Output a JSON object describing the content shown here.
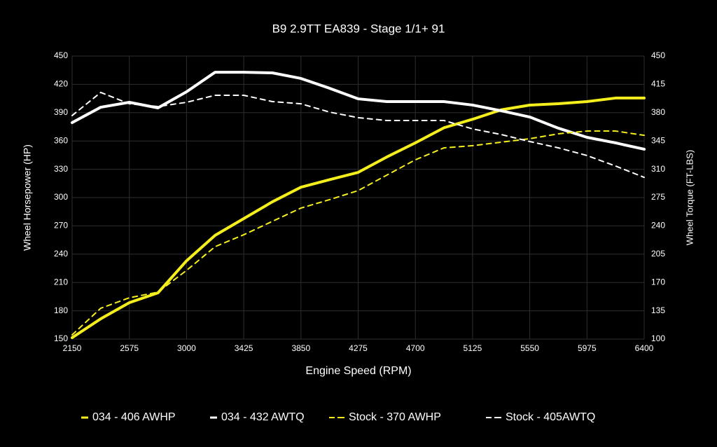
{
  "chart_data": {
    "type": "line",
    "title": "B9 2.9TT EA839 - Stage 1/1+ 91",
    "x_label": "Engine Speed (RPM)",
    "y_label": "Wheel Horsepower (HP)",
    "y2_label": "Wheel Torque (FT-LBS)",
    "x": [
      2150,
      2362.5,
      2575,
      2787.5,
      3000,
      3212.5,
      3425,
      3637.5,
      3850,
      4062.5,
      4275,
      4487.5,
      4700,
      4912.5,
      5125,
      5337.5,
      5550,
      5762.5,
      5975,
      6187.5,
      6400
    ],
    "xlim": [
      2150,
      6400
    ],
    "xticks": [
      2150,
      2575,
      3000,
      3425,
      3850,
      4275,
      4700,
      5125,
      5550,
      5975,
      6400
    ],
    "ylim": [
      150,
      450
    ],
    "yticks": [
      150,
      180,
      210,
      240,
      270,
      300,
      330,
      360,
      390,
      420,
      450
    ],
    "y2lim": [
      100,
      450
    ],
    "y2ticks": [
      100,
      135,
      170,
      205,
      240,
      275,
      310,
      345,
      380,
      415,
      450
    ],
    "grid": true,
    "series": [
      {
        "name": "034 - 406 AWHP",
        "color": "#f4ef1c",
        "style": "solid",
        "axis": "y",
        "values": [
          151.5,
          171.5,
          188.6,
          199,
          233,
          260,
          277.7,
          295.5,
          311,
          319,
          326.7,
          343,
          358,
          374,
          383,
          393,
          398,
          399.5,
          401.7,
          405.5,
          405.5
        ]
      },
      {
        "name": "034 - 432 AWTQ",
        "color": "#ffffff",
        "style": "solid",
        "axis": "y2",
        "values": [
          367.7,
          386.7,
          392.8,
          385.9,
          405.8,
          430,
          430,
          429.2,
          422.3,
          410.2,
          397.1,
          393.7,
          393.7,
          393.7,
          389.4,
          382.4,
          374.6,
          360.8,
          349.5,
          342.6,
          334.8
        ]
      },
      {
        "name": "Stock - 370 AWHP",
        "color": "#f4ef1c",
        "style": "dashed",
        "axis": "y",
        "values": [
          154.5,
          182.7,
          193.8,
          199.8,
          222.8,
          248,
          260.6,
          274.8,
          288.9,
          297.8,
          307.4,
          323.8,
          340,
          352.7,
          355,
          358.7,
          362.4,
          367.6,
          370.5,
          370.5,
          366
        ]
      },
      {
        "name": "Stock - 405AWTQ",
        "color": "#ffffff",
        "style": "dashed",
        "axis": "y2",
        "values": [
          376.4,
          405,
          391,
          387.6,
          392.8,
          401.5,
          401.5,
          393.7,
          391,
          380.7,
          373.8,
          370.3,
          370.3,
          370.3,
          359.9,
          353,
          344.3,
          336.5,
          327,
          314,
          300
        ]
      }
    ]
  }
}
